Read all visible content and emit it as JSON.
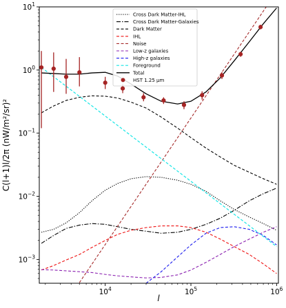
{
  "chart_data": {
    "type": "line",
    "xscale": "log",
    "yscale": "log",
    "xlim": [
      1700,
      1050000
    ],
    "ylim": [
      0.00042,
      10
    ],
    "xlabel": "l",
    "ylabel": "C(l+1)l/2π (nW/m²/sr)²",
    "x_ticks": [
      {
        "value": 10000,
        "base": "10",
        "exp": "4"
      },
      {
        "value": 100000,
        "base": "10",
        "exp": "5"
      },
      {
        "value": 1000000,
        "base": "10",
        "exp": "6"
      }
    ],
    "y_ticks": [
      {
        "value": 0.001,
        "base": "10",
        "exp": "−3"
      },
      {
        "value": 0.01,
        "base": "10",
        "exp": "−2"
      },
      {
        "value": 0.1,
        "base": "10",
        "exp": "−1"
      },
      {
        "value": 1,
        "base": "10",
        "exp": "0"
      },
      {
        "value": 10,
        "base": "10",
        "exp": "1"
      }
    ],
    "legend_position": "top-right",
    "series": [
      {
        "name": "Cross Dark Matter-IHL",
        "color": "#000000",
        "dash": "1.3,1.8",
        "width": 1.1,
        "points": [
          [
            1800,
            0.0027
          ],
          [
            2500,
            0.003
          ],
          [
            3500,
            0.0038
          ],
          [
            5000,
            0.0055
          ],
          [
            7000,
            0.0085
          ],
          [
            10000,
            0.0125
          ],
          [
            14000,
            0.016
          ],
          [
            20000,
            0.019
          ],
          [
            30000,
            0.0205
          ],
          [
            45000,
            0.02
          ],
          [
            70000,
            0.018
          ],
          [
            100000,
            0.0155
          ],
          [
            150000,
            0.012
          ],
          [
            220000,
            0.0085
          ],
          [
            320000,
            0.0062
          ],
          [
            480000,
            0.0047
          ],
          [
            700000,
            0.0037
          ],
          [
            1000000,
            0.0029
          ]
        ]
      },
      {
        "name": "Cross Dark Matter-Galaxies",
        "color": "#000000",
        "dash": "6,2,1.5,2",
        "width": 1.1,
        "points": [
          [
            1800,
            0.0018
          ],
          [
            2500,
            0.0024
          ],
          [
            3500,
            0.0031
          ],
          [
            5000,
            0.0035
          ],
          [
            7000,
            0.0037
          ],
          [
            10000,
            0.0036
          ],
          [
            14000,
            0.0033
          ],
          [
            20000,
            0.003
          ],
          [
            30000,
            0.0028
          ],
          [
            45000,
            0.0026
          ],
          [
            70000,
            0.0027
          ],
          [
            100000,
            0.003
          ],
          [
            150000,
            0.0036
          ],
          [
            220000,
            0.0045
          ],
          [
            320000,
            0.006
          ],
          [
            480000,
            0.0085
          ],
          [
            700000,
            0.011
          ],
          [
            1000000,
            0.0135
          ]
        ]
      },
      {
        "name": "Dark Matter",
        "color": "#000000",
        "dash": "4,2.5",
        "width": 1.1,
        "points": [
          [
            1800,
            0.21
          ],
          [
            2500,
            0.27
          ],
          [
            3500,
            0.33
          ],
          [
            5000,
            0.37
          ],
          [
            7000,
            0.39
          ],
          [
            10000,
            0.385
          ],
          [
            14000,
            0.36
          ],
          [
            20000,
            0.31
          ],
          [
            30000,
            0.25
          ],
          [
            45000,
            0.18
          ],
          [
            70000,
            0.12
          ],
          [
            100000,
            0.085
          ],
          [
            150000,
            0.058
          ],
          [
            220000,
            0.042
          ],
          [
            320000,
            0.031
          ],
          [
            480000,
            0.024
          ],
          [
            700000,
            0.019
          ],
          [
            1000000,
            0.0155
          ]
        ]
      },
      {
        "name": "IHL",
        "color": "#ee1111",
        "dash": "4,2.5",
        "width": 1.1,
        "points": [
          [
            1800,
            0.00068
          ],
          [
            2500,
            0.0008
          ],
          [
            3500,
            0.00098
          ],
          [
            5000,
            0.0012
          ],
          [
            7000,
            0.00155
          ],
          [
            10000,
            0.002
          ],
          [
            14000,
            0.0025
          ],
          [
            20000,
            0.0029
          ],
          [
            30000,
            0.0032
          ],
          [
            45000,
            0.0034
          ],
          [
            70000,
            0.0034
          ],
          [
            100000,
            0.0032
          ],
          [
            150000,
            0.0027
          ],
          [
            220000,
            0.0021
          ],
          [
            320000,
            0.0016
          ],
          [
            480000,
            0.0012
          ],
          [
            700000,
            0.00085
          ],
          [
            1000000,
            0.0006
          ]
        ]
      },
      {
        "name": "Noise",
        "color": "#a52a2a",
        "dash": "4,2.5",
        "width": 1.1,
        "points": [
          [
            5000,
            0.00043
          ],
          [
            1000000,
            17.5
          ]
        ]
      },
      {
        "name": "Low-z galaxies",
        "color": "#8a1fb0",
        "dash": "4,2.5",
        "width": 1.1,
        "points": [
          [
            1800,
            0.00069
          ],
          [
            2500,
            0.00068
          ],
          [
            3500,
            0.00066
          ],
          [
            5000,
            0.00064
          ],
          [
            7000,
            0.00062
          ],
          [
            10000,
            0.00058
          ],
          [
            14000,
            0.00055
          ],
          [
            20000,
            0.00053
          ],
          [
            30000,
            0.00051
          ],
          [
            45000,
            0.00052
          ],
          [
            70000,
            0.00057
          ],
          [
            100000,
            0.00068
          ],
          [
            150000,
            0.0009
          ],
          [
            220000,
            0.0012
          ],
          [
            320000,
            0.0016
          ],
          [
            480000,
            0.0021
          ],
          [
            700000,
            0.0027
          ],
          [
            1000000,
            0.0033
          ]
        ]
      },
      {
        "name": "High-z galaxies",
        "color": "#1a1aee",
        "dash": "4,2.5",
        "width": 1.1,
        "points": [
          [
            30000,
            0.00042
          ],
          [
            45000,
            0.00064
          ],
          [
            70000,
            0.0011
          ],
          [
            100000,
            0.0017
          ],
          [
            150000,
            0.0026
          ],
          [
            220000,
            0.0032
          ],
          [
            320000,
            0.0033
          ],
          [
            480000,
            0.003
          ],
          [
            700000,
            0.0024
          ],
          [
            1000000,
            0.0017
          ]
        ]
      },
      {
        "name": "Foreground",
        "color": "#16e6e6",
        "dash": "4,2.5",
        "width": 1.2,
        "points": [
          [
            1800,
            1.1
          ],
          [
            1000000,
            0.0016
          ]
        ]
      },
      {
        "name": "Total",
        "color": "#000000",
        "dash": "",
        "width": 1.3,
        "points": [
          [
            1800,
            0.9
          ],
          [
            2500,
            0.88
          ],
          [
            3500,
            0.86
          ],
          [
            5000,
            0.86
          ],
          [
            7000,
            0.9
          ],
          [
            10000,
            0.92
          ],
          [
            14000,
            0.8
          ],
          [
            20000,
            0.6
          ],
          [
            30000,
            0.42
          ],
          [
            45000,
            0.32
          ],
          [
            70000,
            0.29
          ],
          [
            100000,
            0.32
          ],
          [
            150000,
            0.45
          ],
          [
            220000,
            0.75
          ],
          [
            320000,
            1.4
          ],
          [
            480000,
            2.8
          ],
          [
            700000,
            5.4
          ],
          [
            1000000,
            9.6
          ]
        ]
      }
    ],
    "data_points": {
      "name": "HST 1.25 μm",
      "color": "#a52424",
      "points": [
        {
          "x": 1800,
          "y": 1.1,
          "lo": 0.12,
          "hi": 2.0
        },
        {
          "x": 2500,
          "y": 1.05,
          "lo": 0.45,
          "hi": 1.9
        },
        {
          "x": 3500,
          "y": 0.78,
          "lo": 0.42,
          "hi": 1.5
        },
        {
          "x": 5000,
          "y": 0.92,
          "lo": 0.55,
          "hi": 1.6
        },
        {
          "x": 10000,
          "y": 0.63,
          "lo": 0.5,
          "hi": 0.78
        },
        {
          "x": 16000,
          "y": 0.51,
          "lo": 0.43,
          "hi": 0.6
        },
        {
          "x": 28000,
          "y": 0.37,
          "lo": 0.32,
          "hi": 0.43
        },
        {
          "x": 48000,
          "y": 0.33,
          "lo": 0.29,
          "hi": 0.37
        },
        {
          "x": 83000,
          "y": 0.28,
          "lo": 0.24,
          "hi": 0.32
        },
        {
          "x": 135000,
          "y": 0.4,
          "lo": 0.34,
          "hi": 0.46
        },
        {
          "x": 230000,
          "y": 0.82,
          "lo": 0.72,
          "hi": 0.93
        },
        {
          "x": 380000,
          "y": 1.78,
          "lo": 1.62,
          "hi": 1.95
        },
        {
          "x": 650000,
          "y": 4.8,
          "lo": 4.4,
          "hi": 5.2
        }
      ]
    }
  }
}
